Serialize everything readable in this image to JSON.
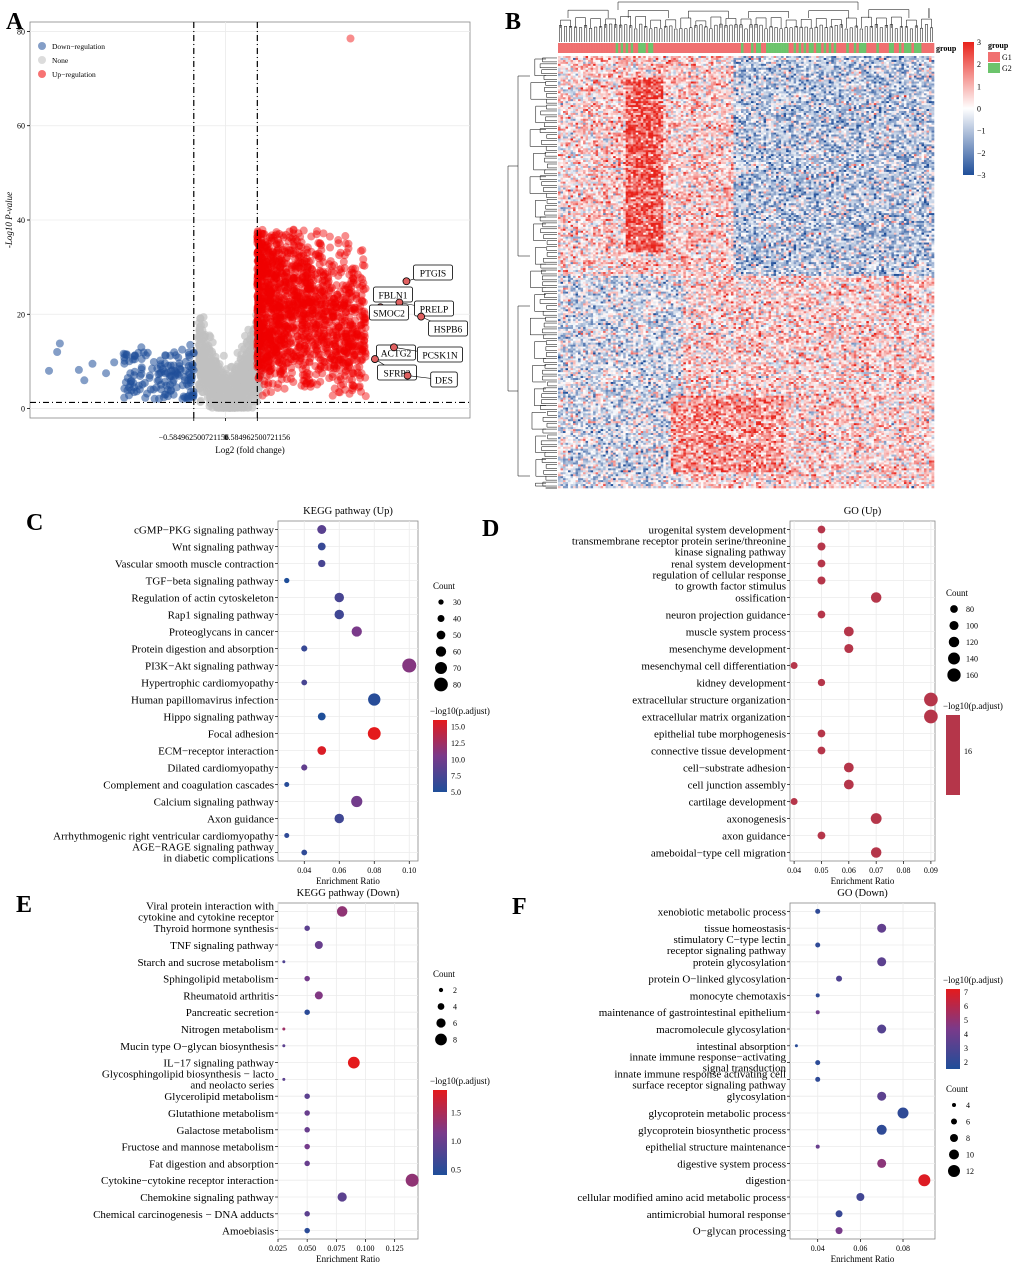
{
  "figure": {
    "panel_letters": [
      "A",
      "B",
      "C",
      "D",
      "E",
      "F"
    ]
  },
  "colors": {
    "down": "#1f4e99",
    "none": "#c0c0c0",
    "up": "#f00000",
    "grid": "#ebebeb",
    "heat_high": "#e8231b",
    "heat_mid": "#ffffff",
    "heat_low": "#1f4e99",
    "g1": "#f07070",
    "g2": "#6cc46c"
  },
  "chart_data": [
    {
      "panel": "A",
      "type": "scatter",
      "title": "",
      "xlabel": "Log2 (fold change)",
      "ylabel": "-Log10 P-value",
      "xlim": [
        -3.6,
        4.5
      ],
      "ylim": [
        -2,
        82
      ],
      "x_ticks": [
        -0.584962500721156,
        0,
        0.584962500721156
      ],
      "x_tick_labels": [
        "−0.584962500721156",
        "0",
        "0.584962500721156"
      ],
      "y_ticks": [
        0,
        20,
        40,
        60,
        80
      ],
      "thresholds": {
        "fc": 0.584962500721156,
        "p": 1.3
      },
      "legend": [
        {
          "key": "down",
          "label": "Down−regulation"
        },
        {
          "key": "none",
          "label": "None"
        },
        {
          "key": "up",
          "label": "Up−regulation"
        }
      ],
      "down_points": [
        [
          -3.05,
          13.8
        ],
        [
          -3.1,
          12.0
        ],
        [
          -3.25,
          8.0
        ],
        [
          -2.7,
          8.2
        ],
        [
          -2.6,
          6.0
        ],
        [
          -2.45,
          9.5
        ],
        [
          -2.2,
          7.5
        ],
        [
          -2.05,
          9.8
        ],
        [
          -1.85,
          11.5
        ],
        [
          -1.55,
          13.0
        ],
        [
          -1.2,
          10.2
        ],
        [
          -1.0,
          8.0
        ],
        [
          -0.8,
          12.5
        ],
        [
          -0.65,
          13.5
        ],
        [
          -1.7,
          5.5
        ],
        [
          -1.4,
          6.5
        ],
        [
          -0.9,
          4.5
        ],
        [
          -1.1,
          3.0
        ],
        [
          -0.7,
          2.5
        ],
        [
          -0.75,
          6.0
        ]
      ],
      "highlight_points": [
        {
          "label": "PTGIS",
          "x": 3.33,
          "y": 27.0
        },
        {
          "label": "FBLN1",
          "x": 2.95,
          "y": 24.5
        },
        {
          "label": "PRELP",
          "x": 3.2,
          "y": 22.5
        },
        {
          "label": "SMOC2",
          "x": 2.85,
          "y": 21.5
        },
        {
          "label": "HSPB6",
          "x": 3.6,
          "y": 19.5
        },
        {
          "label": "ACTG2",
          "x": 2.85,
          "y": 12.5
        },
        {
          "label": "PCSK1N",
          "x": 3.1,
          "y": 13.0
        },
        {
          "label": "SFRP2",
          "x": 2.75,
          "y": 10.5
        },
        {
          "label": "DES",
          "x": 3.35,
          "y": 7.0
        }
      ],
      "outliers": [
        {
          "x": 2.3,
          "y": 78.5
        }
      ]
    },
    {
      "panel": "B",
      "type": "heatmap",
      "title": "",
      "annotation_label": "group",
      "scale_ticks": [
        3,
        2,
        1,
        0,
        -1,
        -2,
        -3
      ],
      "legend_title": "group",
      "legend": [
        "G1",
        "G2"
      ]
    },
    {
      "panel": "C",
      "type": "scatter",
      "title": "KEGG pathway (Up)",
      "xlabel": "Enrichment Ratio",
      "xlim": [
        0.025,
        0.105
      ],
      "x_ticks": [
        0.04,
        0.06,
        0.08,
        0.1
      ],
      "x_tick_labels": [
        "0.04",
        "0.06",
        "0.08",
        "0.10"
      ],
      "color_title": "−log10(p.adjust)",
      "color_range": [
        5,
        16
      ],
      "color_ticks": [
        15.0,
        12.5,
        10.0,
        7.5,
        5.0
      ],
      "color_tick_labels": [
        "15.0",
        "12.5",
        "10.0",
        "7.5",
        "5.0"
      ],
      "size_title": "Count",
      "size_range": [
        28,
        82
      ],
      "size_ticks": [
        30,
        40,
        50,
        60,
        70,
        80
      ],
      "categories": [
        "cGMP−PKG signaling pathway",
        "Wnt signaling pathway",
        "Vascular smooth muscle contraction",
        "TGF−beta signaling pathway",
        "Regulation of actin cytoskeleton",
        "Rap1 signaling pathway",
        "Proteoglycans in cancer",
        "Protein digestion and absorption",
        "PI3K−Akt signaling pathway",
        "Hypertrophic cardiomyopathy",
        "Human papillomavirus infection",
        "Hippo signaling pathway",
        "Focal adhesion",
        "ECM−receptor interaction",
        "Dilated cardiomyopathy",
        "Complement and coagulation cascades",
        "Calcium signaling pathway",
        "Axon guidance",
        "Arrhythmogenic right ventricular cardiomyopathy",
        "AGE−RAGE signaling pathway|in diabetic complications"
      ],
      "points": [
        [
          0.05,
          52,
          8.5
        ],
        [
          0.05,
          45,
          6.5
        ],
        [
          0.05,
          42,
          7.5
        ],
        [
          0.03,
          30,
          5.0
        ],
        [
          0.06,
          55,
          7.5
        ],
        [
          0.06,
          55,
          7.0
        ],
        [
          0.07,
          60,
          10.5
        ],
        [
          0.04,
          35,
          6.5
        ],
        [
          0.1,
          82,
          11.0
        ],
        [
          0.04,
          33,
          7.5
        ],
        [
          0.08,
          72,
          5.5
        ],
        [
          0.05,
          45,
          5.0
        ],
        [
          0.08,
          75,
          16.0
        ],
        [
          0.05,
          50,
          15.5
        ],
        [
          0.04,
          35,
          9.0
        ],
        [
          0.03,
          28,
          5.5
        ],
        [
          0.07,
          65,
          10.0
        ],
        [
          0.06,
          55,
          7.0
        ],
        [
          0.03,
          25,
          6.0
        ],
        [
          0.04,
          33,
          6.0
        ]
      ]
    },
    {
      "panel": "D",
      "type": "scatter",
      "title": "GO (Up)",
      "xlabel": "Enrichment Ratio",
      "xlim": [
        0.0385,
        0.0915
      ],
      "x_ticks": [
        0.04,
        0.05,
        0.06,
        0.07,
        0.08,
        0.09
      ],
      "x_tick_labels": [
        "0.04",
        "0.05",
        "0.06",
        "0.07",
        "0.08",
        "0.09"
      ],
      "color_title": "−log10(p.adjust)",
      "color_ticks": [
        16
      ],
      "color_tick_labels": [
        "16"
      ],
      "size_title": "Count",
      "size_range": [
        70,
        170
      ],
      "size_ticks": [
        80,
        100,
        120,
        140,
        160
      ],
      "categories": [
        "urogenital system development",
        "transmembrane receptor protein serine/threonine|kinase signaling pathway",
        "renal system development",
        "regulation of cellular response|to growth factor stimulus",
        "ossification",
        "neuron projection guidance",
        "muscle system process",
        "mesenchyme development",
        "mesenchymal cell differentiation",
        "kidney development",
        "extracellular structure organization",
        "extracellular matrix organization",
        "epithelial tube morphogenesis",
        "connective tissue development",
        "cell−substrate adhesion",
        "cell junction assembly",
        "cartilage development",
        "axonogenesis",
        "axon guidance",
        "ameboidal−type cell migration"
      ],
      "points": [
        [
          0.05,
          80
        ],
        [
          0.05,
          85
        ],
        [
          0.05,
          82
        ],
        [
          0.05,
          85
        ],
        [
          0.07,
          120
        ],
        [
          0.05,
          80
        ],
        [
          0.06,
          110
        ],
        [
          0.06,
          100
        ],
        [
          0.04,
          70
        ],
        [
          0.05,
          75
        ],
        [
          0.09,
          165
        ],
        [
          0.09,
          165
        ],
        [
          0.05,
          80
        ],
        [
          0.05,
          82
        ],
        [
          0.06,
          110
        ],
        [
          0.06,
          110
        ],
        [
          0.04,
          65
        ],
        [
          0.07,
          125
        ],
        [
          0.05,
          82
        ],
        [
          0.07,
          120
        ]
      ]
    },
    {
      "panel": "E",
      "type": "scatter",
      "title": "KEGG pathway (Down)",
      "xlabel": "Enrichment Ratio",
      "xlim": [
        0.025,
        0.145
      ],
      "x_ticks": [
        0.025,
        0.05,
        0.075,
        0.1,
        0.125
      ],
      "x_tick_labels": [
        "0.025",
        "0.050",
        "0.075",
        "0.100",
        "0.125"
      ],
      "color_title": "−log10(p.adjust)",
      "color_range": [
        0.4,
        1.9
      ],
      "color_ticks": [
        1.5,
        1.0,
        0.5
      ],
      "color_tick_labels": [
        "1.5",
        "1.0",
        "0.5"
      ],
      "size_title": "Count",
      "size_range": [
        1,
        9
      ],
      "size_ticks": [
        2,
        4,
        6,
        8
      ],
      "categories": [
        "Viral protein interaction with|cytokine and cytokine receptor",
        "Thyroid hormone synthesis",
        "TNF signaling pathway",
        "Starch and sucrose metabolism",
        "Sphingolipid metabolism",
        "Rheumatoid arthritis",
        "Pancreatic secretion",
        "Nitrogen metabolism",
        "Mucin type O−glycan biosynthesis",
        "IL−17 signaling pathway",
        "Glycosphingolipid biosynthesis − lacto|and neolacto series",
        "Glycerolipid metabolism",
        "Glutathione metabolism",
        "Galactose metabolism",
        "Fructose and mannose metabolism",
        "Fat digestion and absorption",
        "Cytokine−cytokine receptor interaction",
        "Chemokine signaling pathway",
        "Chemical carcinogenesis − DNA adducts",
        "Amoebiasis"
      ],
      "points": [
        [
          0.08,
          7,
          1.3
        ],
        [
          0.05,
          3,
          0.9
        ],
        [
          0.06,
          5,
          1.0
        ],
        [
          0.03,
          1,
          0.8
        ],
        [
          0.05,
          3,
          1.1
        ],
        [
          0.06,
          5,
          1.2
        ],
        [
          0.05,
          3,
          0.5
        ],
        [
          0.03,
          1,
          1.4
        ],
        [
          0.03,
          1,
          0.9
        ],
        [
          0.09,
          8,
          1.9
        ],
        [
          0.03,
          1,
          0.9
        ],
        [
          0.05,
          3,
          0.9
        ],
        [
          0.05,
          3,
          1.0
        ],
        [
          0.05,
          3,
          1.0
        ],
        [
          0.05,
          3,
          1.1
        ],
        [
          0.05,
          3,
          1.0
        ],
        [
          0.14,
          9,
          1.3
        ],
        [
          0.08,
          6,
          0.9
        ],
        [
          0.05,
          3,
          0.9
        ],
        [
          0.05,
          3,
          0.5
        ]
      ]
    },
    {
      "panel": "F",
      "type": "scatter",
      "title": "GO (Down)",
      "xlabel": "Enrichment Ratio",
      "xlim": [
        0.027,
        0.095
      ],
      "x_ticks": [
        0.04,
        0.06,
        0.08
      ],
      "x_tick_labels": [
        "0.04",
        "0.06",
        "0.08"
      ],
      "color_title": "−log10(p.adjust)",
      "color_range": [
        1.5,
        7.2
      ],
      "color_ticks": [
        7,
        6,
        5,
        4,
        3,
        2
      ],
      "color_tick_labels": [
        "7",
        "6",
        "5",
        "4",
        "3",
        "2"
      ],
      "size_title": "Count",
      "size_range": [
        3,
        13
      ],
      "size_ticks": [
        4,
        6,
        8,
        10,
        12
      ],
      "categories": [
        "xenobiotic metabolic process",
        "tissue homeostasis",
        "stimulatory C−type lectin|receptor signaling pathway",
        "protein glycosylation",
        "protein O−linked glycosylation",
        "monocyte chemotaxis",
        "maintenance of gastrointestinal epithelium",
        "macromolecule glycosylation",
        "intestinal absorption",
        "innate immune response−activating|signal transduction",
        "innate immune response activating cell|surface receptor signaling pathway",
        "glycosylation",
        "glycoprotein metabolic process",
        "glycoprotein biosynthetic process",
        "epithelial structure maintenance",
        "digestive system process",
        "digestion",
        "cellular modified amino acid metabolic process",
        "antimicrobial humoral response",
        "O−glycan processing"
      ],
      "points": [
        [
          0.04,
          5,
          2.0
        ],
        [
          0.07,
          9,
          3.6
        ],
        [
          0.04,
          5,
          2.0
        ],
        [
          0.07,
          9,
          3.4
        ],
        [
          0.05,
          6,
          3.0
        ],
        [
          0.04,
          4,
          2.0
        ],
        [
          0.04,
          4,
          4.0
        ],
        [
          0.07,
          9,
          3.2
        ],
        [
          0.03,
          3,
          1.8
        ],
        [
          0.04,
          5,
          1.9
        ],
        [
          0.04,
          5,
          2.0
        ],
        [
          0.07,
          9,
          3.4
        ],
        [
          0.08,
          11,
          2.0
        ],
        [
          0.07,
          10,
          2.0
        ],
        [
          0.04,
          4,
          3.8
        ],
        [
          0.07,
          9,
          4.8
        ],
        [
          0.09,
          12,
          7.0
        ],
        [
          0.06,
          8,
          2.6
        ],
        [
          0.05,
          7,
          2.3
        ],
        [
          0.05,
          7,
          4.3
        ]
      ]
    }
  ]
}
